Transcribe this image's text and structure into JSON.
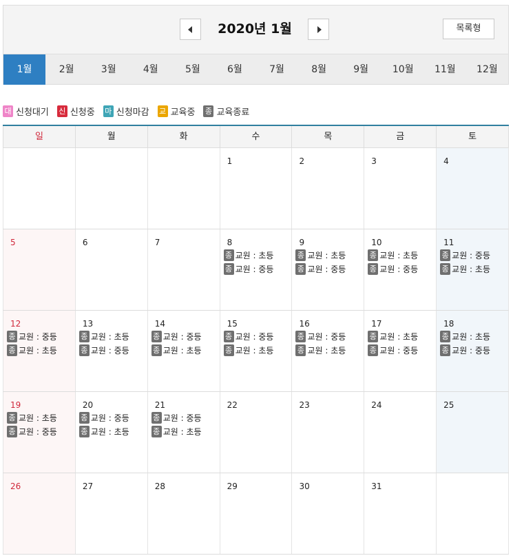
{
  "header": {
    "title": "2020년 1월",
    "list_view_label": "목록형"
  },
  "months": [
    "1월",
    "2월",
    "3월",
    "4월",
    "5월",
    "6월",
    "7월",
    "8월",
    "9월",
    "10월",
    "11월",
    "12월"
  ],
  "active_month_index": 0,
  "legend": [
    {
      "badge": "대",
      "label": "신청대기",
      "color": "#ef85c8"
    },
    {
      "badge": "신",
      "label": "신청중",
      "color": "#d72b3c"
    },
    {
      "badge": "마",
      "label": "신청마감",
      "color": "#3fa5b6"
    },
    {
      "badge": "교",
      "label": "교육중",
      "color": "#eba600"
    },
    {
      "badge": "종",
      "label": "교육종료",
      "color": "#6f6f6f"
    }
  ],
  "weekdays": [
    "일",
    "월",
    "화",
    "수",
    "목",
    "금",
    "토"
  ],
  "weeks": [
    [
      {
        "day": "",
        "events": []
      },
      {
        "day": "",
        "events": []
      },
      {
        "day": "",
        "events": []
      },
      {
        "day": "1",
        "events": []
      },
      {
        "day": "2",
        "events": []
      },
      {
        "day": "3",
        "events": []
      },
      {
        "day": "4",
        "events": []
      }
    ],
    [
      {
        "day": "5",
        "events": []
      },
      {
        "day": "6",
        "events": []
      },
      {
        "day": "7",
        "events": []
      },
      {
        "day": "8",
        "events": [
          {
            "badge": "종",
            "text": "교원 : 초등"
          },
          {
            "badge": "종",
            "text": "교원 : 중등"
          }
        ]
      },
      {
        "day": "9",
        "events": [
          {
            "badge": "종",
            "text": "교원 : 초등"
          },
          {
            "badge": "종",
            "text": "교원 : 중등"
          }
        ]
      },
      {
        "day": "10",
        "events": [
          {
            "badge": "종",
            "text": "교원 : 초등"
          },
          {
            "badge": "종",
            "text": "교원 : 중등"
          }
        ]
      },
      {
        "day": "11",
        "events": [
          {
            "badge": "종",
            "text": "교원 : 중등"
          },
          {
            "badge": "종",
            "text": "교원 : 초등"
          }
        ]
      }
    ],
    [
      {
        "day": "12",
        "events": [
          {
            "badge": "종",
            "text": "교원 : 중등"
          },
          {
            "badge": "종",
            "text": "교원 : 초등"
          }
        ]
      },
      {
        "day": "13",
        "events": [
          {
            "badge": "종",
            "text": "교원 : 초등"
          },
          {
            "badge": "종",
            "text": "교원 : 중등"
          }
        ]
      },
      {
        "day": "14",
        "events": [
          {
            "badge": "종",
            "text": "교원 : 중등"
          },
          {
            "badge": "종",
            "text": "교원 : 초등"
          }
        ]
      },
      {
        "day": "15",
        "events": [
          {
            "badge": "종",
            "text": "교원 : 중등"
          },
          {
            "badge": "종",
            "text": "교원 : 초등"
          }
        ]
      },
      {
        "day": "16",
        "events": [
          {
            "badge": "종",
            "text": "교원 : 중등"
          },
          {
            "badge": "종",
            "text": "교원 : 초등"
          }
        ]
      },
      {
        "day": "17",
        "events": [
          {
            "badge": "종",
            "text": "교원 : 초등"
          },
          {
            "badge": "종",
            "text": "교원 : 중등"
          }
        ]
      },
      {
        "day": "18",
        "events": [
          {
            "badge": "종",
            "text": "교원 : 초등"
          },
          {
            "badge": "종",
            "text": "교원 : 중등"
          }
        ]
      }
    ],
    [
      {
        "day": "19",
        "events": [
          {
            "badge": "종",
            "text": "교원 : 초등"
          },
          {
            "badge": "종",
            "text": "교원 : 중등"
          }
        ]
      },
      {
        "day": "20",
        "events": [
          {
            "badge": "종",
            "text": "교원 : 중등"
          },
          {
            "badge": "종",
            "text": "교원 : 초등"
          }
        ]
      },
      {
        "day": "21",
        "events": [
          {
            "badge": "종",
            "text": "교원 : 중등"
          },
          {
            "badge": "종",
            "text": "교원 : 초등"
          }
        ]
      },
      {
        "day": "22",
        "events": []
      },
      {
        "day": "23",
        "events": []
      },
      {
        "day": "24",
        "events": []
      },
      {
        "day": "25",
        "events": []
      }
    ],
    [
      {
        "day": "26",
        "events": []
      },
      {
        "day": "27",
        "events": []
      },
      {
        "day": "28",
        "events": []
      },
      {
        "day": "29",
        "events": []
      },
      {
        "day": "30",
        "events": []
      },
      {
        "day": "31",
        "events": []
      },
      {
        "day": "",
        "events": []
      }
    ]
  ]
}
